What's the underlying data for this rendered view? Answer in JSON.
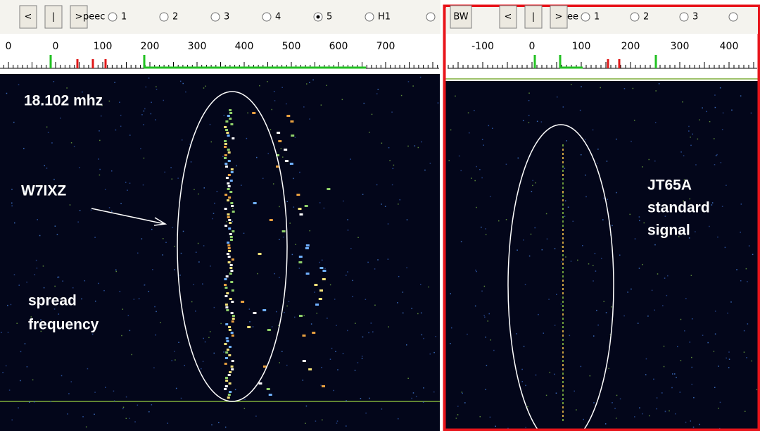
{
  "left_panel": {
    "toolbar": {
      "buttons": [
        "<",
        "|",
        ">"
      ],
      "speed_label": "peec",
      "radios": [
        "1",
        "2",
        "3",
        "4",
        "5",
        "H1"
      ],
      "selected": 4
    },
    "scale_labels": [
      "0",
      "0",
      "100",
      "200",
      "300",
      "400",
      "500",
      "600",
      "700"
    ],
    "annotations": {
      "frequency": "18.102 mhz",
      "callsign": "W7IXZ",
      "description": [
        "spread",
        "frequency"
      ]
    }
  },
  "right_panel": {
    "toolbar": {
      "bw_button": "BW",
      "buttons": [
        "<",
        "|",
        ">"
      ],
      "speed_label": "ee",
      "radios": [
        "1",
        "2",
        "3"
      ]
    },
    "scale_labels": [
      "-100",
      "0",
      "100",
      "200",
      "300",
      "400"
    ],
    "annotations": {
      "description": [
        "JT65A",
        "standard",
        "signal"
      ]
    }
  }
}
